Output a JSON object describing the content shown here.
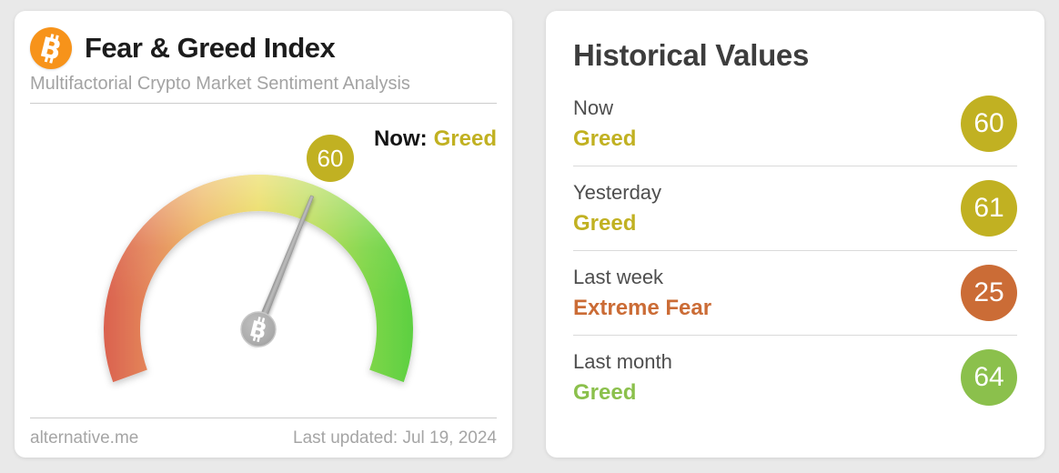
{
  "page": {
    "background": "#e9e9e9"
  },
  "colors": {
    "bitcoin_orange": "#f7931a",
    "greed_olive": "#c1b122",
    "extreme_fear_orange": "#cb6c36",
    "greed_green": "#8bc04c"
  },
  "gauge_card": {
    "title": "Fear & Greed Index",
    "subtitle": "Multifactorial Crypto Market Sentiment Analysis",
    "now_prefix": "Now:",
    "now_classification": "Greed",
    "gauge_value": "60",
    "footer_site": "alternative.me",
    "footer_updated": "Last updated: Jul 19, 2024"
  },
  "historical_card": {
    "title": "Historical Values",
    "rows": [
      {
        "label": "Now",
        "classification": "Greed",
        "value": "60",
        "color": "#c1b122"
      },
      {
        "label": "Yesterday",
        "classification": "Greed",
        "value": "61",
        "color": "#c1b122"
      },
      {
        "label": "Last week",
        "classification": "Extreme Fear",
        "value": "25",
        "color": "#cb6c36"
      },
      {
        "label": "Last month",
        "classification": "Greed",
        "value": "64",
        "color": "#8bc04c"
      }
    ]
  },
  "chart_data": {
    "type": "gauge",
    "title": "Fear & Greed Index",
    "min": 0,
    "max": 100,
    "value": 60,
    "classification": "Greed",
    "arc_span_degrees": 220,
    "scale_colors": [
      "#da614f",
      "#e4875a",
      "#ecb357",
      "#e8d74a",
      "#b4da4e",
      "#7fd648",
      "#5dd042"
    ],
    "historical": [
      {
        "label": "Now",
        "value": 60,
        "classification": "Greed"
      },
      {
        "label": "Yesterday",
        "value": 61,
        "classification": "Greed"
      },
      {
        "label": "Last week",
        "value": 25,
        "classification": "Extreme Fear"
      },
      {
        "label": "Last month",
        "value": 64,
        "classification": "Greed"
      }
    ]
  }
}
